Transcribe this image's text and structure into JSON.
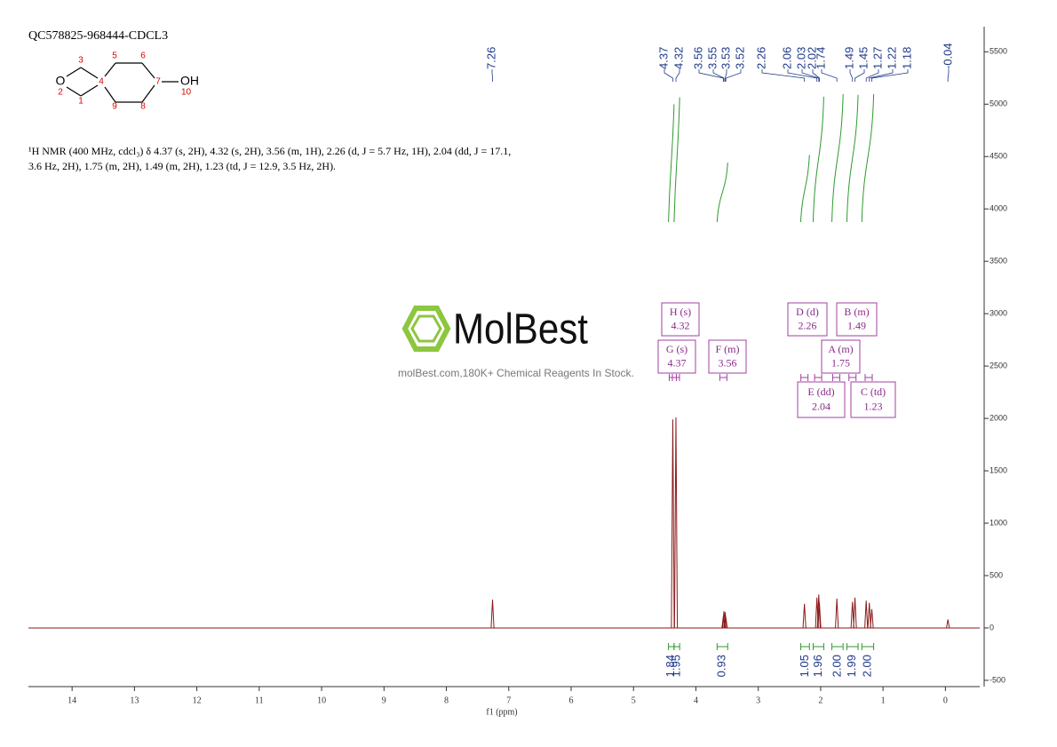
{
  "chart_data": {
    "type": "line",
    "title": "QC578825-968444-CDCL3",
    "xlabel": "f1 (ppm)",
    "x": [
      7.26,
      4.37,
      4.32,
      3.56,
      3.55,
      3.53,
      3.52,
      2.26,
      2.06,
      2.03,
      2.02,
      1.74,
      1.49,
      1.45,
      1.27,
      1.22,
      1.18,
      -0.04
    ],
    "values": [
      270,
      1990,
      2010,
      110,
      160,
      150,
      100,
      230,
      290,
      320,
      240,
      280,
      250,
      290,
      260,
      240,
      180,
      80
    ],
    "color": "#8b1a1a",
    "xlim": [
      14.7,
      -0.55
    ],
    "xticks": [
      14,
      13,
      12,
      11,
      10,
      9,
      8,
      7,
      6,
      5,
      4,
      3,
      2,
      1,
      0
    ],
    "ylim": [
      -560,
      5740
    ],
    "yticks": [
      -500,
      0,
      500,
      1000,
      1500,
      2000,
      2500,
      3000,
      3500,
      4000,
      4500,
      5000,
      5500
    ],
    "integrals": {
      "ranges": [
        [
          4.44,
          4.35
        ],
        [
          4.35,
          4.26
        ],
        [
          3.66,
          3.49
        ],
        [
          2.32,
          2.18
        ],
        [
          2.12,
          1.95
        ],
        [
          1.82,
          1.64
        ],
        [
          1.58,
          1.4
        ],
        [
          1.34,
          1.15
        ]
      ],
      "values": [
        1.84,
        1.95,
        0.93,
        1.05,
        1.96,
        2,
        1.99,
        2
      ],
      "value_labels": [
        "1.84",
        "1.95",
        "0.93",
        "1.05",
        "1.96",
        "2.00",
        "1.99",
        "2.00"
      ]
    },
    "multiplets": [
      {
        "name": "H (s)",
        "shift": 4.32
      },
      {
        "name": "G (s)",
        "shift": 4.37
      },
      {
        "name": "F (m)",
        "shift": 3.56
      },
      {
        "name": "D (d)",
        "shift": 2.26
      },
      {
        "name": "B (m)",
        "shift": 1.49
      },
      {
        "name": "A (m)",
        "shift": 1.75
      },
      {
        "name": "E (dd)",
        "shift": 2.04
      },
      {
        "name": "C (td)",
        "shift": 1.23
      }
    ]
  },
  "description": "¹H NMR (400 MHz, cdcl₃) δ 4.37 (s, 2H), 4.32 (s, 2H), 3.56 (m, 1H), 2.26 (d, J = 5.7 Hz, 1H), 2.04 (dd, J = 17.1, 3.6 Hz, 2H), 1.75 (m, 2H), 1.49 (m, 2H), 1.23 (td, J = 12.9, 3.5 Hz, 2H).",
  "watermark": {
    "brand": "MolBest",
    "tagline": "molBest.com,180K+ Chemical Reagents In Stock."
  },
  "structure": {
    "atoms": [
      "O",
      "2",
      "3",
      "1",
      "4",
      "5",
      "6",
      "7",
      "OH",
      "10",
      "8",
      "9"
    ]
  }
}
